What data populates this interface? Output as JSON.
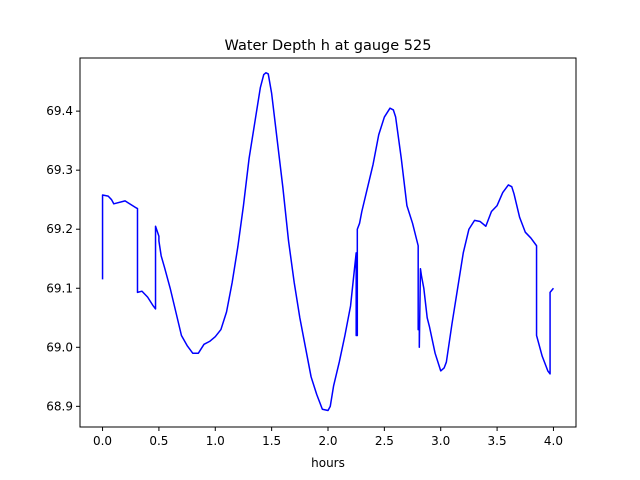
{
  "chart_data": {
    "type": "line",
    "title": "Water Depth h at gauge 525",
    "xlabel": "hours",
    "ylabel": "",
    "xlim": [
      -0.2,
      4.2
    ],
    "ylim": [
      68.865,
      69.49
    ],
    "xticks": [
      0.0,
      0.5,
      1.0,
      1.5,
      2.0,
      2.5,
      3.0,
      3.5,
      4.0
    ],
    "xtick_labels": [
      "0.0",
      "0.5",
      "1.0",
      "1.5",
      "2.0",
      "2.5",
      "3.0",
      "3.5",
      "4.0"
    ],
    "yticks": [
      68.9,
      69.0,
      69.1,
      69.2,
      69.3,
      69.4
    ],
    "ytick_labels": [
      "68.9",
      "69.0",
      "69.1",
      "69.2",
      "69.3",
      "69.4"
    ],
    "grid": false,
    "legend": "none",
    "series": [
      {
        "color": "#0000ff",
        "x": [
          0.0,
          0.0,
          0.05,
          0.08,
          0.1,
          0.2,
          0.3,
          0.3,
          0.31,
          0.31,
          0.35,
          0.4,
          0.45,
          0.47,
          0.47,
          0.5,
          0.5,
          0.52,
          0.55,
          0.6,
          0.65,
          0.7,
          0.75,
          0.8,
          0.85,
          0.9,
          0.95,
          1.0,
          1.05,
          1.1,
          1.15,
          1.2,
          1.25,
          1.3,
          1.35,
          1.4,
          1.43,
          1.45,
          1.47,
          1.5,
          1.55,
          1.6,
          1.65,
          1.7,
          1.75,
          1.8,
          1.85,
          1.9,
          1.95,
          2.0,
          2.02,
          2.05,
          2.1,
          2.15,
          2.2,
          2.25,
          2.25,
          2.26,
          2.26,
          2.28,
          2.3,
          2.35,
          2.4,
          2.45,
          2.5,
          2.55,
          2.58,
          2.6,
          2.65,
          2.7,
          2.75,
          2.8,
          2.8,
          2.81,
          2.81,
          2.82,
          2.83,
          2.85,
          2.88,
          2.9,
          2.95,
          3.0,
          3.03,
          3.05,
          3.1,
          3.15,
          3.2,
          3.25,
          3.3,
          3.35,
          3.4,
          3.45,
          3.5,
          3.55,
          3.6,
          3.63,
          3.65,
          3.7,
          3.75,
          3.8,
          3.85,
          3.85,
          3.9,
          3.95,
          3.97,
          3.97,
          4.0
        ],
        "y": [
          69.115,
          69.258,
          69.256,
          69.25,
          69.243,
          69.248,
          69.236,
          69.236,
          69.235,
          69.093,
          69.095,
          69.085,
          69.07,
          69.065,
          69.205,
          69.188,
          69.18,
          69.155,
          69.135,
          69.1,
          69.06,
          69.02,
          69.003,
          68.99,
          68.99,
          69.005,
          69.01,
          69.018,
          69.03,
          69.06,
          69.11,
          69.17,
          69.24,
          69.32,
          69.38,
          69.44,
          69.462,
          69.465,
          69.463,
          69.43,
          69.35,
          69.27,
          69.18,
          69.11,
          69.05,
          69.0,
          68.95,
          68.92,
          68.895,
          68.893,
          68.9,
          68.935,
          68.975,
          69.02,
          69.07,
          69.16,
          69.02,
          69.02,
          69.2,
          69.21,
          69.23,
          69.27,
          69.31,
          69.36,
          69.39,
          69.405,
          69.402,
          69.39,
          69.32,
          69.24,
          69.21,
          69.172,
          69.03,
          69.03,
          69.0,
          69.133,
          69.12,
          69.1,
          69.05,
          69.035,
          68.99,
          68.96,
          68.965,
          68.975,
          69.04,
          69.1,
          69.16,
          69.2,
          69.215,
          69.213,
          69.205,
          69.23,
          69.24,
          69.262,
          69.275,
          69.272,
          69.26,
          69.22,
          69.195,
          69.185,
          69.172,
          69.02,
          68.985,
          68.96,
          68.955,
          69.093,
          69.1
        ]
      }
    ]
  }
}
